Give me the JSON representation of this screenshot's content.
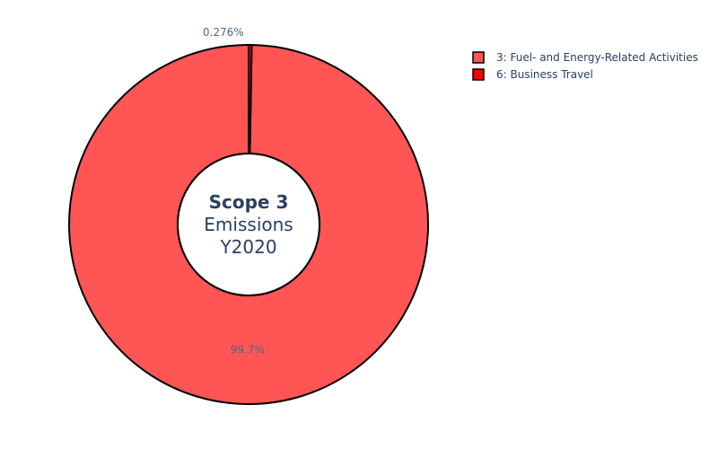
{
  "chart_data": {
    "type": "pie",
    "hole": true,
    "center_title": {
      "line1": "Scope 3",
      "line2": "Emissions",
      "line3": "Y2020"
    },
    "slices": [
      {
        "name": "3: Fuel- and Energy-Related Activities",
        "value": 99.724,
        "label": "99.7%",
        "color": "#FF5555"
      },
      {
        "name": "6: Business Travel",
        "value": 0.276,
        "label": "0.276%",
        "color": "#FF0000"
      }
    ],
    "legend_position": "top-right",
    "slice_border_color": "#000000"
  }
}
